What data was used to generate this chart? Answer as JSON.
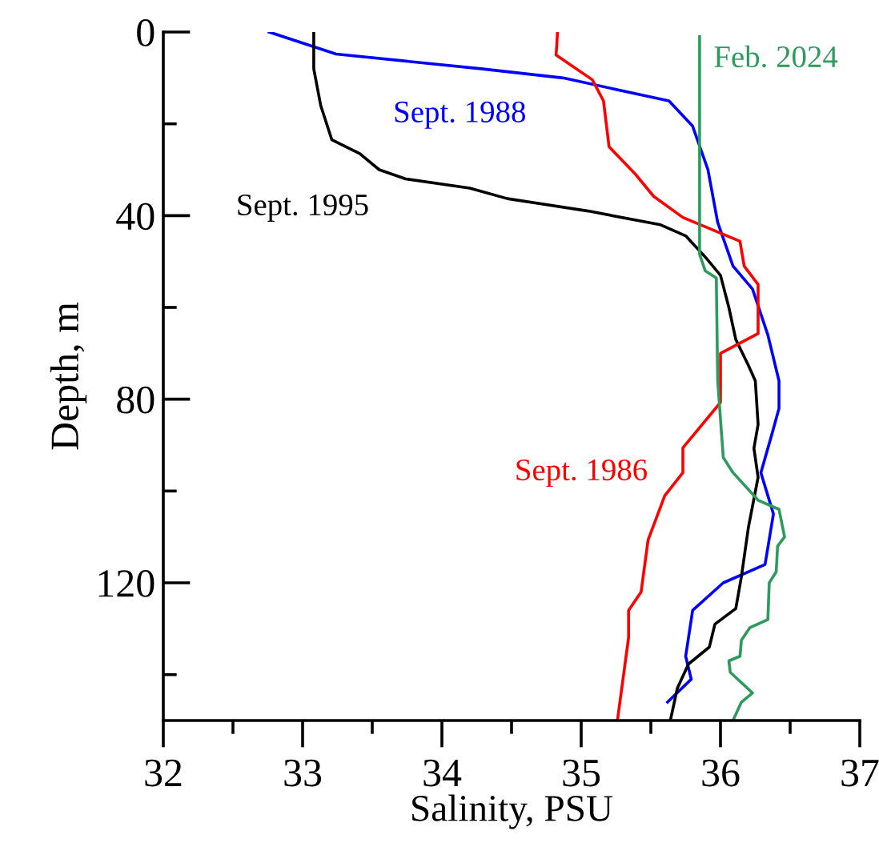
{
  "chart_data": {
    "type": "line",
    "xlabel": "Salinity, PSU",
    "ylabel": "Depth, m",
    "xlim": [
      32,
      37
    ],
    "xticks": [
      32,
      33,
      34,
      35,
      36,
      37
    ],
    "ylim": [
      150,
      0
    ],
    "yticks": [
      0,
      40,
      80,
      120
    ],
    "grid": false,
    "line_style": "solid",
    "marker": "none",
    "series": [
      {
        "name": "Sept. 1988",
        "color": "#0000ff",
        "x": [
          32.76,
          33.24,
          34.28,
          34.87,
          35.63,
          35.8,
          35.91,
          35.98,
          36.09,
          36.23,
          36.34,
          36.42,
          36.42,
          36.37,
          36.29,
          36.38,
          36.32,
          36.02,
          35.8,
          35.75,
          35.79,
          35.62
        ],
        "values": [
          0,
          4.8,
          8,
          10,
          15,
          20.5,
          30,
          41.5,
          51,
          56,
          66,
          76,
          82,
          87.5,
          96,
          105,
          116,
          120,
          126,
          136,
          141,
          146
        ]
      },
      {
        "name": "Sept. 1995",
        "color": "#000000",
        "x": [
          33.08,
          33.08,
          33.13,
          33.21,
          33.41,
          33.55,
          33.74,
          34.2,
          34.47,
          35.05,
          35.57,
          35.75,
          35.89,
          36.0,
          36.06,
          36.11,
          36.2,
          36.25,
          36.27,
          36.24,
          36.27,
          36.2,
          36.15,
          36.11,
          35.96,
          35.92,
          35.77,
          35.69,
          35.64
        ],
        "values": [
          0,
          8,
          16,
          23.5,
          26.5,
          30,
          32,
          34,
          36.3,
          39,
          42,
          44.4,
          49,
          53,
          60,
          67,
          72.6,
          76,
          85.5,
          90.7,
          97,
          108,
          118.7,
          125.6,
          129,
          134,
          137.7,
          143,
          150
        ]
      },
      {
        "name": "Sept. 1986",
        "color": "#ff0000",
        "x": [
          34.83,
          34.82,
          35.08,
          35.16,
          35.2,
          35.39,
          35.52,
          35.73,
          36.14,
          36.17,
          36.27,
          36.27,
          36.0,
          36.0,
          35.73,
          35.73,
          35.6,
          35.48,
          35.43,
          35.34,
          35.34,
          35.26
        ],
        "values": [
          0,
          5,
          10.4,
          15,
          25,
          31,
          35.8,
          40.4,
          45.6,
          51,
          55,
          65.7,
          70,
          80.7,
          90.6,
          96,
          101,
          110.7,
          122,
          126,
          132,
          150
        ]
      },
      {
        "name": "Feb. 2024",
        "color": "#2e9a5e",
        "x": [
          35.85,
          35.85,
          35.89,
          35.97,
          35.98,
          36.02,
          36.09,
          36.27,
          36.42,
          36.46,
          36.41,
          36.4,
          36.35,
          36.34,
          36.21,
          36.15,
          36.14,
          36.06,
          36.07,
          36.23,
          36.15,
          36.09
        ],
        "values": [
          1,
          48.4,
          52,
          53.6,
          76,
          92.7,
          96,
          102,
          104,
          110,
          112,
          117.6,
          120,
          128,
          129.8,
          132.5,
          136,
          137,
          139.5,
          144,
          146,
          150
        ]
      }
    ]
  }
}
